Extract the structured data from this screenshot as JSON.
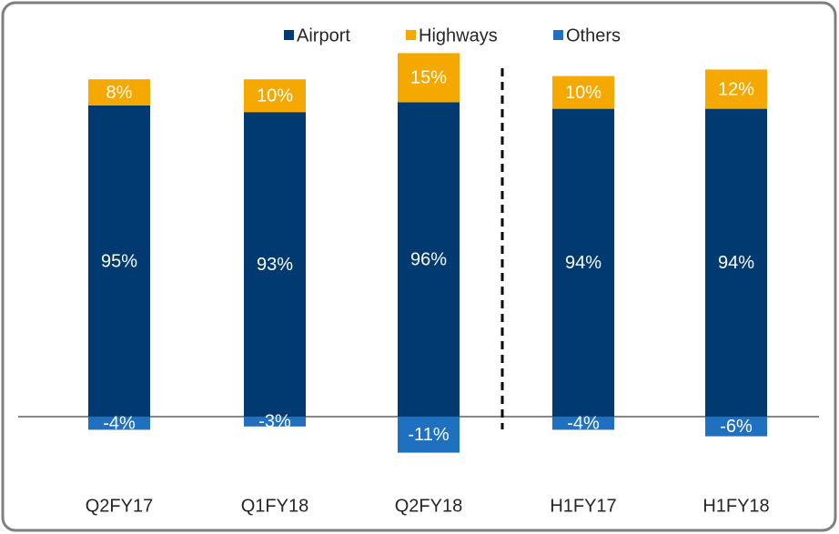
{
  "chart_data": {
    "type": "bar",
    "stacked": true,
    "categories": [
      "Q2FY17",
      "Q1FY18",
      "Q2FY18",
      "H1FY17",
      "H1FY18"
    ],
    "series": [
      {
        "name": "Airport",
        "color": "#003a70",
        "values": [
          95,
          93,
          96,
          94,
          94
        ],
        "value_labels": [
          "95%",
          "93%",
          "96%",
          "94%",
          "94%"
        ]
      },
      {
        "name": "Highways",
        "color": "#f5a800",
        "values": [
          8,
          10,
          15,
          10,
          12
        ],
        "value_labels": [
          "8%",
          "10%",
          "15%",
          "10%",
          "12%"
        ]
      },
      {
        "name": "Others",
        "color": "#1f70bf",
        "values": [
          -4,
          -3,
          -11,
          -4,
          -6
        ],
        "value_labels": [
          "-4%",
          "-3%",
          "-11%",
          "-4%",
          "-6%"
        ]
      }
    ]
  }
}
